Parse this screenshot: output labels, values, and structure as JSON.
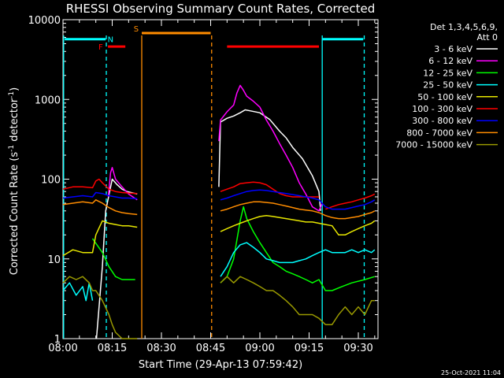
{
  "chart_data": {
    "type": "line",
    "title": "RHESSI Observing Summary Count Rates, Corrected",
    "xlabel": "Start Time (29-Apr-13 07:59:42)",
    "ylabel": "Corrected Count Rate (s⁻¹ detector⁻¹)",
    "ylabel_main": "Corrected Count Rate (s",
    "ylabel_sup1": "-1",
    "ylabel_mid": " detector",
    "ylabel_sup2": "-1",
    "ylabel_end": ")",
    "timestamp": "25-Oct-2021 11:04",
    "y_scale": "log",
    "ylim": [
      1,
      10000
    ],
    "xlim_minutes": [
      0,
      96
    ],
    "x_ticks": [
      {
        "m": 0,
        "label": "08:00"
      },
      {
        "m": 15,
        "label": "08:15"
      },
      {
        "m": 30,
        "label": "08:30"
      },
      {
        "m": 45,
        "label": "08:45"
      },
      {
        "m": 60,
        "label": "09:00"
      },
      {
        "m": 75,
        "label": "09:15"
      },
      {
        "m": 90,
        "label": "09:30"
      }
    ],
    "y_ticks": [
      {
        "v": 1,
        "label": "1"
      },
      {
        "v": 10,
        "label": "10"
      },
      {
        "v": 100,
        "label": "100"
      },
      {
        "v": 1000,
        "label": "1000"
      },
      {
        "v": 10000,
        "label": "10000"
      }
    ],
    "legend_header": [
      "Det 1,3,4,5,6,9,",
      "Att 0"
    ],
    "legend_placement": "top-right, outside plot",
    "series": [
      {
        "name": "3 - 6 keV",
        "color": "#ffffff"
      },
      {
        "name": "6 - 12 keV",
        "color": "#ff00ff"
      },
      {
        "name": "12 - 25 keV",
        "color": "#00ff00"
      },
      {
        "name": "25 - 50 keV",
        "color": "#00ffff"
      },
      {
        "name": "50 - 100 keV",
        "color": "#e6e600"
      },
      {
        "name": "100 - 300 keV",
        "color": "#ff0000"
      },
      {
        "name": "300 - 800 keV",
        "color": "#0000ff"
      },
      {
        "name": "800 - 7000 keV",
        "color": "#ff8c00"
      },
      {
        "name": "7000 - 15000 keV",
        "color": "#999900"
      }
    ],
    "series_data": [
      {
        "segments": [
          {
            "x": [
              10.2,
              12,
              13,
              15,
              16.5,
              18,
              19.5,
              22.6
            ],
            "y": [
              1,
              8,
              40,
              100,
              85,
              75,
              70,
              65
            ]
          },
          {
            "x": [
              47.5,
              48,
              50,
              52,
              54,
              55.5,
              57,
              60,
              63,
              66,
              68,
              70,
              73,
              76,
              78,
              78.5
            ],
            "y": [
              80,
              520,
              580,
              620,
              680,
              740,
              720,
              680,
              560,
              400,
              330,
              250,
              180,
              110,
              70,
              40
            ]
          }
        ]
      },
      {
        "segments": [
          {
            "x": [
              13.8,
              14.5,
              15,
              16,
              18,
              20,
              22.6
            ],
            "y": [
              60,
              120,
              140,
              100,
              80,
              65,
              55
            ]
          },
          {
            "x": [
              47.5,
              48,
              50,
              52,
              53,
              54,
              55,
              56,
              58,
              60,
              62,
              64,
              66,
              68,
              70,
              72,
              74,
              76,
              78,
              79
            ],
            "y": [
              300,
              550,
              700,
              850,
              1200,
              1500,
              1300,
              1100,
              950,
              800,
              550,
              400,
              280,
              200,
              140,
              90,
              65,
              45,
              40,
              50
            ]
          }
        ]
      },
      {
        "segments": [
          {
            "x": [
              9,
              12,
              14,
              16,
              18,
              22
            ],
            "y": [
              18,
              12,
              8,
              6,
              5.5,
              5.5
            ]
          },
          {
            "x": [
              48,
              50,
              52,
              54,
              55,
              56,
              58,
              60,
              62,
              64,
              66,
              68,
              70,
              72,
              74,
              76,
              78,
              80,
              82,
              85,
              88,
              92,
              95
            ],
            "y": [
              5,
              6,
              10,
              30,
              45,
              32,
              22,
              16,
              12,
              9,
              8,
              7,
              6.5,
              6,
              5.5,
              5,
              5.5,
              4,
              4,
              4.5,
              5,
              5.5,
              6
            ]
          }
        ]
      },
      {
        "segments": [
          {
            "x": [
              0,
              2,
              4,
              6,
              7,
              8,
              9
            ],
            "y": [
              4,
              5,
              3.5,
              4.5,
              3,
              5,
              3
            ]
          },
          {
            "x": [
              48,
              50,
              52,
              54,
              56,
              58,
              60,
              62,
              64,
              66,
              68,
              70,
              72,
              74,
              76,
              78,
              80,
              82,
              86,
              88,
              90,
              92,
              94,
              95
            ],
            "y": [
              6,
              8,
              12,
              15,
              16,
              14,
              12,
              10,
              9.5,
              9,
              9,
              9,
              9.5,
              10,
              11,
              12,
              13,
              12,
              12,
              13,
              12,
              13,
              12,
              13
            ]
          }
        ]
      },
      {
        "segments": [
          {
            "x": [
              0,
              3,
              6,
              9,
              10,
              12,
              14,
              16,
              18,
              20,
              22.6
            ],
            "y": [
              11,
              13,
              12,
              12,
              20,
              30,
              28,
              27,
              26,
              26,
              25
            ]
          },
          {
            "x": [
              48,
              50,
              52,
              54,
              56,
              58,
              60,
              62,
              64,
              66,
              68,
              70,
              72,
              74,
              76,
              78,
              80,
              82,
              84,
              86,
              88,
              90,
              92,
              94,
              95
            ],
            "y": [
              22,
              24,
              26,
              28,
              30,
              32,
              34,
              35,
              34,
              33,
              32,
              31,
              30,
              29,
              29,
              28,
              27,
              26,
              20,
              20,
              22,
              24,
              26,
              28,
              30
            ]
          }
        ]
      },
      {
        "segments": [
          {
            "x": [
              0,
              3,
              6,
              9,
              10,
              11,
              12,
              14,
              16,
              18,
              20,
              22.6
            ],
            "y": [
              75,
              80,
              80,
              78,
              95,
              100,
              90,
              75,
              70,
              68,
              67,
              66
            ]
          },
          {
            "x": [
              48,
              50,
              52,
              54,
              56,
              58,
              60,
              62,
              64,
              66,
              68,
              70,
              72,
              74,
              76,
              78
            ],
            "y": [
              70,
              75,
              80,
              88,
              90,
              92,
              90,
              85,
              75,
              66,
              62,
              60,
              60,
              60,
              60,
              60
            ]
          },
          {
            "x": [
              80,
              82,
              84,
              86,
              88,
              90,
              92,
              94,
              95
            ],
            "y": [
              42,
              45,
              48,
              50,
              52,
              55,
              58,
              62,
              65
            ]
          }
        ]
      },
      {
        "segments": [
          {
            "x": [
              0,
              3,
              6,
              9,
              10,
              12,
              14,
              16,
              18,
              20,
              22.6
            ],
            "y": [
              58,
              60,
              62,
              60,
              68,
              66,
              62,
              60,
              58,
              58,
              57
            ]
          },
          {
            "x": [
              48,
              50,
              52,
              54,
              56,
              58,
              60,
              62,
              64,
              66,
              68,
              70,
              72,
              74,
              76,
              78,
              80,
              82,
              84,
              86,
              88,
              90,
              92,
              94,
              95
            ],
            "y": [
              55,
              58,
              62,
              66,
              70,
              72,
              73,
              72,
              70,
              68,
              66,
              64,
              62,
              60,
              58,
              55,
              45,
              42,
              42,
              42,
              44,
              46,
              48,
              52,
              55
            ]
          }
        ]
      },
      {
        "segments": [
          {
            "x": [
              0,
              3,
              6,
              9,
              10,
              12,
              14,
              16,
              18,
              20,
              22.6
            ],
            "y": [
              48,
              50,
              52,
              50,
              55,
              50,
              44,
              40,
              38,
              37,
              36
            ]
          },
          {
            "x": [
              48,
              50,
              52,
              54,
              56,
              58,
              60,
              62,
              64,
              66,
              68,
              70,
              72,
              74,
              76,
              78,
              80,
              82,
              84,
              86,
              88,
              90,
              92,
              94,
              95
            ],
            "y": [
              40,
              42,
              45,
              48,
              50,
              52,
              52,
              51,
              50,
              48,
              46,
              44,
              42,
              41,
              40,
              38,
              35,
              33,
              32,
              32,
              33,
              34,
              36,
              38,
              40
            ]
          }
        ]
      },
      {
        "segments": [
          {
            "x": [
              0,
              2,
              4,
              6,
              8,
              9,
              10,
              12,
              14,
              15,
              16,
              18,
              20,
              22.6
            ],
            "y": [
              5,
              6,
              5.5,
              6,
              5,
              4,
              4,
              3,
              2,
              1.5,
              1.2,
              1,
              1,
              1
            ]
          },
          {
            "x": [
              48,
              50,
              52,
              54,
              56,
              58,
              60,
              62,
              64,
              66,
              68,
              70,
              72,
              74,
              76,
              78,
              80,
              82,
              84,
              86,
              88,
              90,
              92,
              94,
              95
            ],
            "y": [
              5,
              6,
              5,
              6,
              5.5,
              5,
              4.5,
              4,
              4,
              3.5,
              3,
              2.5,
              2,
              2,
              2,
              1.8,
              1.5,
              1.5,
              2,
              2.5,
              2,
              2.5,
              2,
              3,
              3
            ]
          }
        ]
      }
    ],
    "flags": [
      {
        "label": "S",
        "color": "#ff8c00",
        "x": [
          24,
          45
        ],
        "y": 6800,
        "text_x": 22.3,
        "text_y": 7800
      },
      {
        "label": "N",
        "color": "#00ffff",
        "x": [
          0.5,
          13
        ],
        "y": 5700,
        "text_x": 14.5,
        "text_y": 5700
      },
      {
        "label": "N",
        "color": "#00ffff",
        "x": [
          79,
          91.5
        ],
        "y": 5700,
        "text_x": null,
        "text_y": null
      },
      {
        "label": "F",
        "color": "#ff0000",
        "x": [
          13.7,
          19
        ],
        "y": 4600,
        "text_x": 11.5,
        "text_y": 4600
      },
      {
        "label": "",
        "color": "#ff0000",
        "x": [
          50,
          78
        ],
        "y": 4600,
        "text_x": null,
        "text_y": null
      }
    ],
    "vertical_markers": [
      {
        "m": 0.2,
        "style": "solid",
        "color": "#00ffff"
      },
      {
        "m": 13.2,
        "style": "dashed",
        "color": "#00ffff"
      },
      {
        "m": 24,
        "style": "solid",
        "color": "#ff8c00"
      },
      {
        "m": 45.3,
        "style": "dashed",
        "color": "#ff8c00"
      },
      {
        "m": 79,
        "style": "solid",
        "color": "#00ffff"
      },
      {
        "m": 91.8,
        "style": "dashed",
        "color": "#00ffff"
      }
    ]
  }
}
